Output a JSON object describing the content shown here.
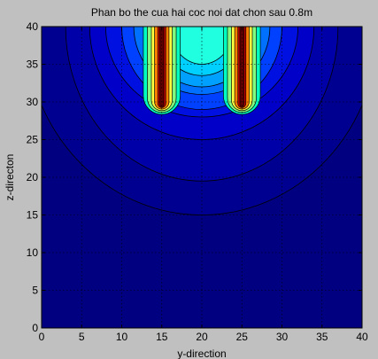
{
  "chart_data": {
    "type": "contour",
    "title": "Phan bo the cua hai coc noi dat chon sau 0.8m",
    "xlabel": "y-direction",
    "ylabel": "z-directon",
    "xlim": [
      0,
      40
    ],
    "ylim": [
      0,
      40
    ],
    "xticks": [
      0,
      5,
      10,
      15,
      20,
      25,
      30,
      35,
      40
    ],
    "yticks": [
      0,
      5,
      10,
      15,
      20,
      25,
      30,
      35,
      40
    ],
    "grid": true,
    "colormap": "jet",
    "background_color": "#c0c0c0",
    "sources": [
      {
        "y": 15,
        "z_top": 40,
        "z_bottom": 29.5
      },
      {
        "y": 25,
        "z_top": 40,
        "z_bottom": 29.5
      }
    ],
    "contour_levels": [
      {
        "level": 1,
        "color": "#000090",
        "rx": 22,
        "ry": 25,
        "cy": 40
      },
      {
        "level": 2,
        "color": "#0000a8",
        "rx": 17,
        "ry": 20.5,
        "cy": 40
      },
      {
        "level": 3,
        "color": "#0000c8",
        "rx": 14,
        "ry": 15,
        "cy": 40
      },
      {
        "level": 4,
        "color": "#0010e0",
        "rx": 12,
        "ry": 12,
        "cy": 40
      },
      {
        "level": 5,
        "color": "#0040ff",
        "rx": 10,
        "ry": 11,
        "cy": 40
      },
      {
        "level": 6,
        "color": "#0070ff",
        "rx": 8.5,
        "ry": 9,
        "cy": 40
      },
      {
        "level": 7,
        "color": "#00a0ff",
        "rx": 7,
        "ry": 8,
        "cy": 40
      },
      {
        "level": 8,
        "color": "#00d0ff",
        "rx": 5.5,
        "ry": 6.5,
        "cy": 40
      },
      {
        "level": 9,
        "color": "#20ffe0",
        "rx": 4,
        "ry": 5,
        "cy": 40
      }
    ]
  }
}
